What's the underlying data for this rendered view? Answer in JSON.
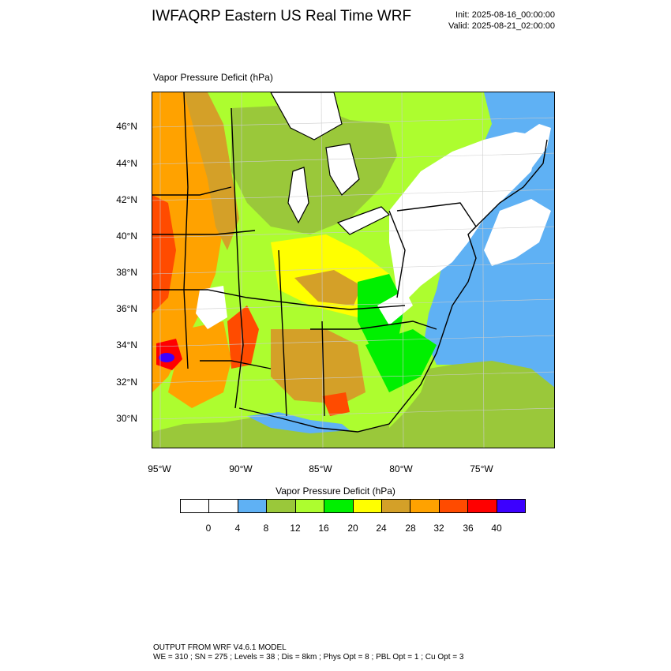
{
  "header": {
    "title": "IWFAQRP Eastern US Real Time WRF",
    "init": "Init: 2025-08-16_00:00:00",
    "valid": "Valid: 2025-08-21_02:00:00"
  },
  "field_title": "Vapor Pressure Deficit   (hPa)",
  "map": {
    "lat_ticks": [
      "46°N",
      "44°N",
      "42°N",
      "40°N",
      "38°N",
      "36°N",
      "34°N",
      "32°N",
      "30°N"
    ],
    "lon_ticks": [
      "95°W",
      "90°W",
      "85°W",
      "80°W",
      "75°W"
    ],
    "colors": {
      "water": "#5fb1f4",
      "lowland": "#9ac83a",
      "green": "#adfd2f",
      "bright_green": "#00f000",
      "yellow": "#ffff00",
      "tan": "#d4a028",
      "orange": "#ffa200",
      "red_orange": "#ff4b00",
      "red": "#ff0000",
      "blue_purple": "#3c00ff",
      "white": "#ffffff"
    }
  },
  "colorbar": {
    "title": "Vapor Pressure Deficit  (hPa)",
    "colors": [
      "#ffffff",
      "#ffffff",
      "#5fb1f4",
      "#9ac83a",
      "#adfd2f",
      "#00f000",
      "#ffff00",
      "#d4a028",
      "#ffa200",
      "#ff4b00",
      "#ff0000",
      "#3c00ff"
    ],
    "labels": [
      "0",
      "4",
      "8",
      "12",
      "16",
      "20",
      "24",
      "28",
      "32",
      "36",
      "40"
    ]
  },
  "footer": {
    "line1": "OUTPUT FROM WRF V4.6.1 MODEL",
    "line2": "WE = 310 ; SN = 275 ; Levels = 38 ; Dis = 8km ; Phys Opt = 8 ; PBL Opt = 1 ; Cu Opt = 3"
  }
}
